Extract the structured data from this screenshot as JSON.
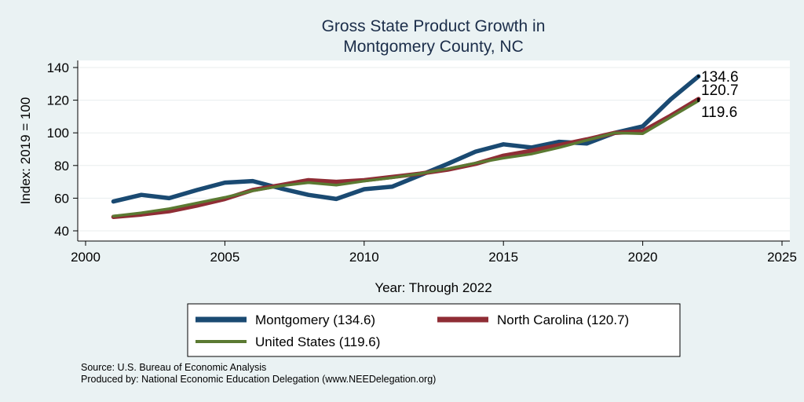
{
  "chart_data": {
    "type": "line",
    "title": "Gross State Product Growth in",
    "subtitle": "Montgomery County, NC",
    "xlabel": "Year: Through 2022",
    "ylabel": "Index: 2019 = 100",
    "xlim": [
      2000,
      2025
    ],
    "ylim": [
      40,
      140
    ],
    "xticks": [
      2000,
      2005,
      2010,
      2015,
      2020,
      2025
    ],
    "yticks": [
      40,
      60,
      80,
      100,
      120,
      140
    ],
    "x": [
      2001,
      2002,
      2003,
      2004,
      2005,
      2006,
      2007,
      2008,
      2009,
      2010,
      2011,
      2012,
      2013,
      2014,
      2015,
      2016,
      2017,
      2018,
      2019,
      2020,
      2021,
      2022
    ],
    "series": [
      {
        "name": "Montgomery  (134.6)",
        "color": "#1a4a72",
        "end_label": "134.6",
        "values": [
          58,
          62,
          60,
          65,
          69.5,
          70.5,
          66,
          62,
          59.5,
          65.5,
          67,
          74,
          81,
          88.5,
          93,
          91,
          94.5,
          93.5,
          100,
          104,
          120.5,
          134.6
        ]
      },
      {
        "name": "North Carolina (120.7)",
        "color": "#8f2d35",
        "end_label": "120.7",
        "values": [
          48.5,
          50,
          52,
          55.5,
          59.5,
          65,
          68,
          71,
          70,
          71,
          73,
          75,
          77.5,
          81,
          86,
          89,
          92.5,
          96,
          100,
          101,
          110.5,
          120.7
        ]
      },
      {
        "name": "United States (119.6)",
        "color": "#5b7a32",
        "end_label": "119.6",
        "values": [
          49,
          51,
          53.5,
          57,
          60.5,
          64.5,
          67.5,
          69.5,
          68,
          70.5,
          72.5,
          75,
          78,
          81.5,
          84.5,
          87,
          91,
          95.5,
          100,
          99.5,
          109.5,
          119.6
        ]
      }
    ],
    "grid": true,
    "legend_position": "bottom"
  },
  "footer": {
    "source": "Source: U.S. Bureau of Economic Analysis",
    "produced_by": "Produced by: National Economic Education Delegation (www.NEEDelegation.org)"
  }
}
